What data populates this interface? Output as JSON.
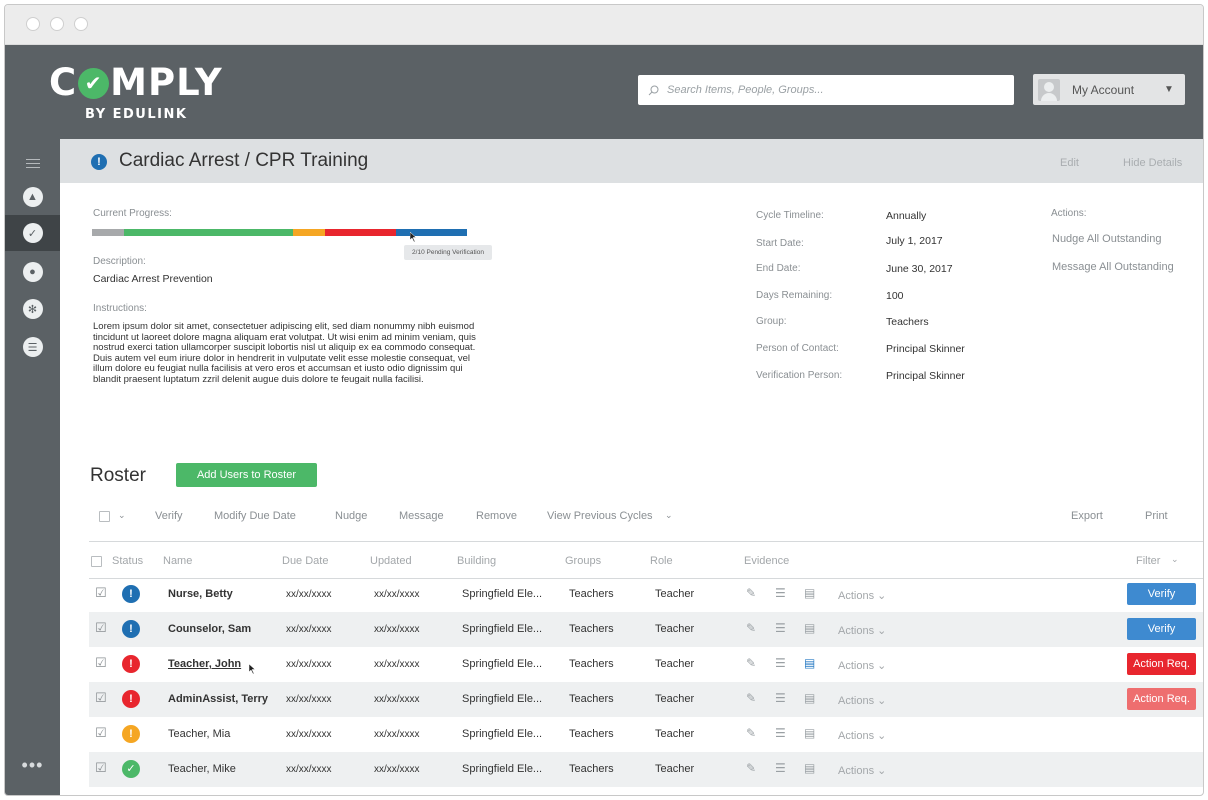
{
  "header": {
    "logo_main_left": "C",
    "logo_main_right": "MPLY",
    "logo_sub": "BY EDULINK",
    "search_placeholder": "Search Items, People, Groups...",
    "account_label": "My Account"
  },
  "subheader": {
    "title": "Cardiac Arrest / CPR Training",
    "edit": "Edit",
    "hide_details": "Hide Details"
  },
  "details": {
    "progress_label": "Current Progress:",
    "progress_segments": [
      {
        "status": "not-started",
        "fraction": 0.085,
        "color": "#a7a9ab"
      },
      {
        "status": "complete",
        "fraction": 0.45,
        "color": "#4cb868"
      },
      {
        "status": "pending",
        "fraction": 0.085,
        "color": "#f5a623"
      },
      {
        "status": "action-required",
        "fraction": 0.19,
        "color": "#e8262e"
      },
      {
        "status": "pending-verification",
        "fraction": 0.19,
        "color": "#1f6fb2"
      }
    ],
    "tooltip": "2/10 Pending Verification",
    "description_label": "Description:",
    "description": "Cardiac Arrest Prevention",
    "instructions_label": "Instructions:",
    "instructions": "Lorem ipsum dolor sit amet, consectetuer adipiscing elit, sed diam nonummy nibh euismod tincidunt ut laoreet dolore magna aliquam erat volutpat. Ut wisi enim ad minim veniam, quis nostrud exerci tation ullamcorper suscipit lobortis nisl ut aliquip ex ea commodo consequat. Duis autem vel eum iriure dolor in hendrerit in vulputate velit esse molestie consequat, vel illum dolore eu feugiat nulla facilisis at vero eros et accumsan et iusto odio dignissim qui blandit praesent luptatum zzril delenit augue duis dolore te feugait nulla facilisi.",
    "fields": [
      {
        "label": "Cycle Timeline:",
        "value": "Annually"
      },
      {
        "label": "Start Date:",
        "value": "July 1, 2017"
      },
      {
        "label": "End Date:",
        "value": "June 30, 2017"
      },
      {
        "label": "Days Remaining:",
        "value": "100"
      },
      {
        "label": "Group:",
        "value": "Teachers"
      },
      {
        "label": "Person of Contact:",
        "value": "Principal Skinner"
      },
      {
        "label": "Verification Person:",
        "value": "Principal Skinner"
      }
    ],
    "actions_label": "Actions:",
    "actions": [
      "Nudge All Outstanding",
      "Message All Outstanding"
    ]
  },
  "roster": {
    "title": "Roster",
    "add_button": "Add Users to Roster",
    "toolbar": [
      "Verify",
      "Modify Due Date",
      "Nudge",
      "Message",
      "Remove",
      "View Previous Cycles"
    ],
    "export": "Export",
    "print": "Print",
    "columns": [
      "Status",
      "Name",
      "Due Date",
      "Updated",
      "Building",
      "Groups",
      "Role",
      "Evidence"
    ],
    "filter": "Filter",
    "row_actions_label": "Actions",
    "rows": [
      {
        "name": "Nurse, Betty",
        "bold": true,
        "due": "xx/xx/xxxx",
        "updated": "xx/xx/xxxx",
        "building": "Springfield Ele...",
        "group": "Teachers",
        "role": "Teacher",
        "status_glyph": "!",
        "status_color": "#1f6fb2",
        "note_blue": false,
        "button": "Verify",
        "button_color": "#3e8ad0"
      },
      {
        "name": "Counselor, Sam",
        "bold": true,
        "due": "xx/xx/xxxx",
        "updated": "xx/xx/xxxx",
        "building": "Springfield Ele...",
        "group": "Teachers",
        "role": "Teacher",
        "status_glyph": "!",
        "status_color": "#1f6fb2",
        "note_blue": false,
        "button": "Verify",
        "button_color": "#3e8ad0"
      },
      {
        "name": "Teacher, John",
        "bold": true,
        "due": "xx/xx/xxxx",
        "updated": "xx/xx/xxxx",
        "building": "Springfield Ele...",
        "group": "Teachers",
        "role": "Teacher",
        "status_glyph": "!",
        "status_color": "#e8262e",
        "note_blue": true,
        "button": "Action Req.",
        "button_color": "#e8262e"
      },
      {
        "name": "AdminAssist, Terry",
        "bold": true,
        "due": "xx/xx/xxxx",
        "updated": "xx/xx/xxxx",
        "building": "Springfield Ele...",
        "group": "Teachers",
        "role": "Teacher",
        "status_glyph": "!",
        "status_color": "#e8262e",
        "note_blue": false,
        "button": "Action Req.",
        "button_color": "#ee6e6f"
      },
      {
        "name": "Teacher, Mia",
        "bold": false,
        "due": "xx/xx/xxxx",
        "updated": "xx/xx/xxxx",
        "building": "Springfield Ele...",
        "group": "Teachers",
        "role": "Teacher",
        "status_glyph": "!",
        "status_color": "#f5a623",
        "note_blue": false,
        "button": "",
        "button_color": ""
      },
      {
        "name": "Teacher, Mike",
        "bold": false,
        "due": "xx/xx/xxxx",
        "updated": "xx/xx/xxxx",
        "building": "Springfield Ele...",
        "group": "Teachers",
        "role": "Teacher",
        "status_glyph": "✓",
        "status_color": "#4cb868",
        "note_blue": false,
        "button": "",
        "button_color": ""
      }
    ]
  },
  "colors": {
    "header_bg": "#5b6165",
    "brand_green": "#4cb868",
    "info_blue": "#1f6fb2",
    "alert_red": "#e8262e",
    "warn_orange": "#f5a623"
  }
}
